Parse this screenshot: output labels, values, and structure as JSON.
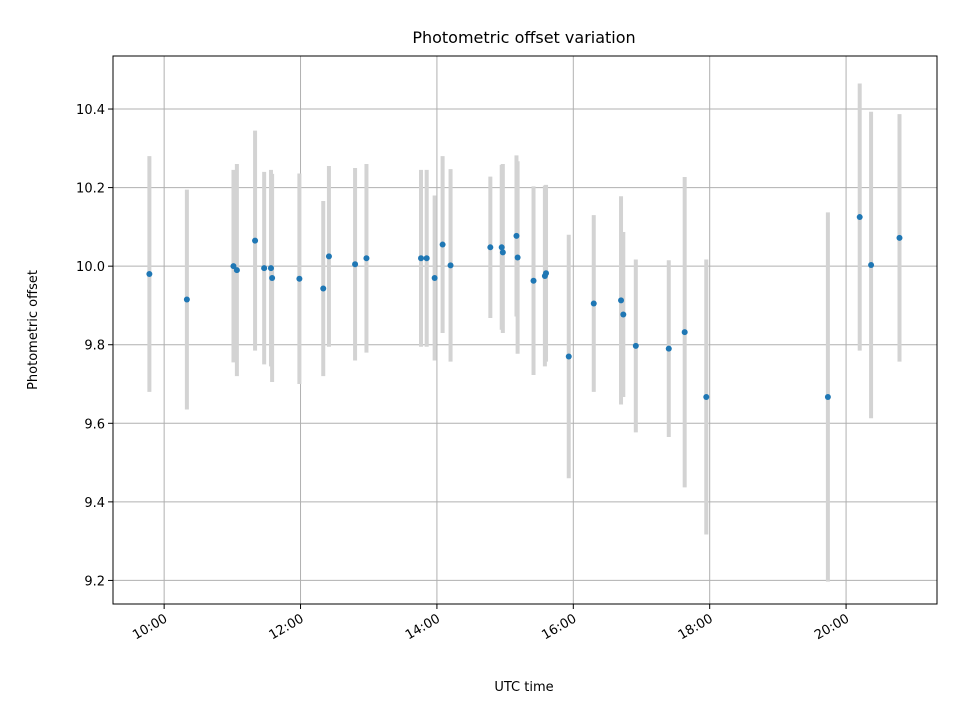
{
  "chart_data": {
    "type": "scatter",
    "title": "Photometric offset variation",
    "xlabel": "UTC time",
    "ylabel": "Photometric offset",
    "x_axis": {
      "kind": "time",
      "range": [
        "09:15",
        "21:20"
      ],
      "ticks": [
        "10:00",
        "12:00",
        "14:00",
        "16:00",
        "18:00",
        "20:00"
      ]
    },
    "y_axis": {
      "range": [
        9.14,
        10.535
      ],
      "ticks": [
        "9.2",
        "9.4",
        "9.6",
        "9.8",
        "10.0",
        "10.2",
        "10.4"
      ]
    },
    "grid": true,
    "colors": {
      "points": "#1f77b4",
      "errorbars": "#d3d3d3"
    },
    "series": [
      {
        "points": [
          {
            "x": "09:47",
            "y": 9.98,
            "lo": 9.68,
            "hi": 10.28
          },
          {
            "x": "10:20",
            "y": 9.915,
            "lo": 9.635,
            "hi": 10.195
          },
          {
            "x": "11:01",
            "y": 10.0,
            "lo": 9.755,
            "hi": 10.245
          },
          {
            "x": "11:04",
            "y": 9.99,
            "lo": 9.72,
            "hi": 10.26
          },
          {
            "x": "11:20",
            "y": 10.065,
            "lo": 9.785,
            "hi": 10.345
          },
          {
            "x": "11:28",
            "y": 9.995,
            "lo": 9.75,
            "hi": 10.24
          },
          {
            "x": "11:34",
            "y": 9.995,
            "lo": 9.745,
            "hi": 10.245
          },
          {
            "x": "11:35",
            "y": 9.97,
            "lo": 9.705,
            "hi": 10.235
          },
          {
            "x": "11:59",
            "y": 9.968,
            "lo": 9.7,
            "hi": 10.236
          },
          {
            "x": "12:20",
            "y": 9.943,
            "lo": 9.72,
            "hi": 10.166
          },
          {
            "x": "12:25",
            "y": 10.025,
            "lo": 9.795,
            "hi": 10.255
          },
          {
            "x": "12:48",
            "y": 10.005,
            "lo": 9.76,
            "hi": 10.25
          },
          {
            "x": "12:58",
            "y": 10.02,
            "lo": 9.78,
            "hi": 10.26
          },
          {
            "x": "13:46",
            "y": 10.02,
            "lo": 9.795,
            "hi": 10.245
          },
          {
            "x": "13:51",
            "y": 10.02,
            "lo": 9.795,
            "hi": 10.245
          },
          {
            "x": "13:58",
            "y": 9.97,
            "lo": 9.76,
            "hi": 10.18
          },
          {
            "x": "14:05",
            "y": 10.055,
            "lo": 9.83,
            "hi": 10.28
          },
          {
            "x": "14:12",
            "y": 10.002,
            "lo": 9.757,
            "hi": 10.247
          },
          {
            "x": "14:47",
            "y": 10.048,
            "lo": 9.868,
            "hi": 10.228
          },
          {
            "x": "14:57",
            "y": 10.048,
            "lo": 9.838,
            "hi": 10.258
          },
          {
            "x": "14:58",
            "y": 10.035,
            "lo": 9.83,
            "hi": 10.26
          },
          {
            "x": "15:10",
            "y": 10.077,
            "lo": 9.872,
            "hi": 10.282
          },
          {
            "x": "15:11",
            "y": 10.022,
            "lo": 9.777,
            "hi": 10.267
          },
          {
            "x": "15:25",
            "y": 9.963,
            "lo": 9.723,
            "hi": 10.203
          },
          {
            "x": "15:35",
            "y": 9.975,
            "lo": 9.745,
            "hi": 10.205
          },
          {
            "x": "15:36",
            "y": 9.982,
            "lo": 9.757,
            "hi": 10.207
          },
          {
            "x": "15:56",
            "y": 9.77,
            "lo": 9.46,
            "hi": 10.08
          },
          {
            "x": "16:18",
            "y": 9.905,
            "lo": 9.68,
            "hi": 10.13
          },
          {
            "x": "16:42",
            "y": 9.913,
            "lo": 9.648,
            "hi": 10.178
          },
          {
            "x": "16:44",
            "y": 9.877,
            "lo": 9.667,
            "hi": 10.087
          },
          {
            "x": "16:55",
            "y": 9.797,
            "lo": 9.577,
            "hi": 10.017
          },
          {
            "x": "17:24",
            "y": 9.79,
            "lo": 9.565,
            "hi": 10.015
          },
          {
            "x": "17:38",
            "y": 9.832,
            "lo": 9.437,
            "hi": 10.227
          },
          {
            "x": "17:57",
            "y": 9.667,
            "lo": 9.317,
            "hi": 10.017
          },
          {
            "x": "19:44",
            "y": 9.667,
            "lo": 9.197,
            "hi": 10.137
          },
          {
            "x": "20:12",
            "y": 10.125,
            "lo": 9.785,
            "hi": 10.465
          },
          {
            "x": "20:22",
            "y": 10.003,
            "lo": 9.613,
            "hi": 10.393
          },
          {
            "x": "20:47",
            "y": 10.072,
            "lo": 9.757,
            "hi": 10.387
          }
        ]
      }
    ]
  }
}
